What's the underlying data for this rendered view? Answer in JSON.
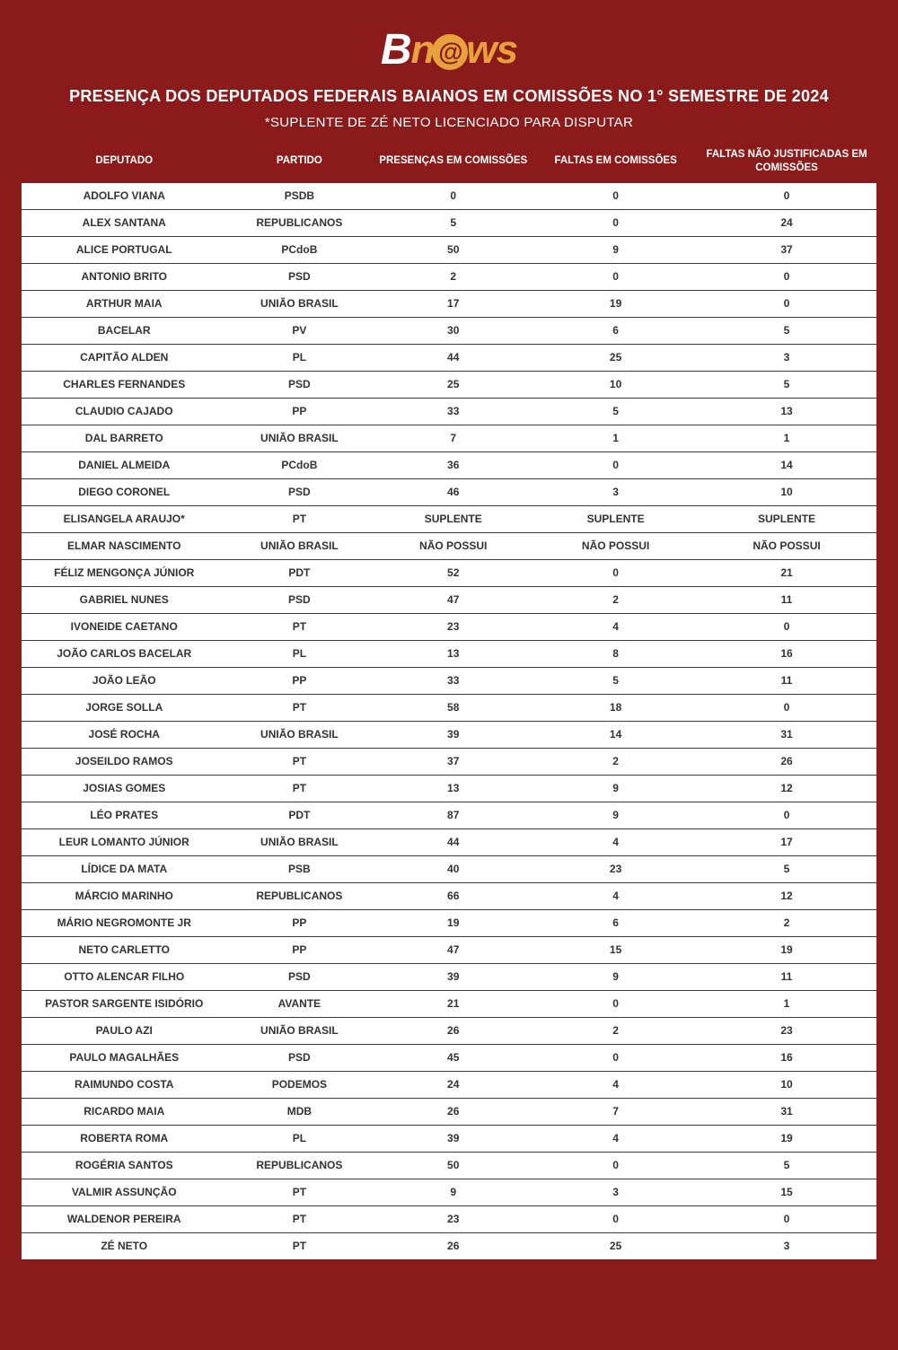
{
  "logo": {
    "b": "B",
    "n": "n",
    "e": "e",
    "ws": "ws"
  },
  "title": "PRESENÇA DOS DEPUTADOS FEDERAIS BAIANOS EM COMISSÕES NO 1° SEMESTRE DE 2024",
  "subtitle": "*SUPLENTE DE ZÉ NETO LICENCIADO PARA DISPUTAR",
  "colors": {
    "background": "#8B1A1A",
    "accent": "#E8A23D",
    "cell_bg": "#ffffff",
    "cell_text": "#333333",
    "border": "#8B1A1A"
  },
  "table": {
    "columns": [
      "DEPUTADO",
      "PARTIDO",
      "PRESENÇAS EM COMISSÕES",
      "FALTAS EM COMISSÕES",
      "FALTAS NÃO JUSTIFICADAS EM COMISSÕES"
    ],
    "rows": [
      [
        "ADOLFO VIANA",
        "PSDB",
        "0",
        "0",
        "0"
      ],
      [
        "ALEX SANTANA",
        "REPUBLICANOS",
        "5",
        "0",
        "24"
      ],
      [
        "ALICE PORTUGAL",
        "PCdoB",
        "50",
        "9",
        "37"
      ],
      [
        "ANTONIO BRITO",
        "PSD",
        "2",
        "0",
        "0"
      ],
      [
        "ARTHUR MAIA",
        "UNIÃO BRASIL",
        "17",
        "19",
        "0"
      ],
      [
        "BACELAR",
        "PV",
        "30",
        "6",
        "5"
      ],
      [
        "CAPITÃO ALDEN",
        "PL",
        "44",
        "25",
        "3"
      ],
      [
        "CHARLES FERNANDES",
        "PSD",
        "25",
        "10",
        "5"
      ],
      [
        "CLAUDIO CAJADO",
        "PP",
        "33",
        "5",
        "13"
      ],
      [
        "DAL BARRETO",
        "UNIÃO BRASIL",
        "7",
        "1",
        "1"
      ],
      [
        "DANIEL ALMEIDA",
        "PCdoB",
        "36",
        "0",
        "14"
      ],
      [
        "DIEGO CORONEL",
        "PSD",
        "46",
        "3",
        "10"
      ],
      [
        "ELISANGELA ARAUJO*",
        "PT",
        "SUPLENTE",
        "SUPLENTE",
        "SUPLENTE"
      ],
      [
        "ELMAR NASCIMENTO",
        "UNIÃO BRASIL",
        "NÃO POSSUI",
        "NÃO POSSUI",
        "NÃO POSSUI"
      ],
      [
        "FÉLIZ MENGONÇA JÚNIOR",
        "PDT",
        "52",
        "0",
        "21"
      ],
      [
        "GABRIEL NUNES",
        "PSD",
        "47",
        "2",
        "11"
      ],
      [
        "IVONEIDE CAETANO",
        "PT",
        "23",
        "4",
        "0"
      ],
      [
        "JOÃO CARLOS BACELAR",
        "PL",
        "13",
        "8",
        "16"
      ],
      [
        "JOÃO LEÃO",
        "PP",
        "33",
        "5",
        "11"
      ],
      [
        "JORGE SOLLA",
        "PT",
        "58",
        "18",
        "0"
      ],
      [
        "JOSÉ ROCHA",
        "UNIÃO BRASIL",
        "39",
        "14",
        "31"
      ],
      [
        "JOSEILDO RAMOS",
        "PT",
        "37",
        "2",
        "26"
      ],
      [
        "JOSIAS GOMES",
        "PT",
        "13",
        "9",
        "12"
      ],
      [
        "LÉO PRATES",
        "PDT",
        "87",
        "9",
        "0"
      ],
      [
        "LEUR LOMANTO JÚNIOR",
        "UNIÃO BRASIL",
        "44",
        "4",
        "17"
      ],
      [
        "LÍDICE DA MATA",
        "PSB",
        "40",
        "23",
        "5"
      ],
      [
        "MÁRCIO MARINHO",
        "REPUBLICANOS",
        "66",
        "4",
        "12"
      ],
      [
        "MÁRIO NEGROMONTE JR",
        "PP",
        "19",
        "6",
        "2"
      ],
      [
        "NETO CARLETTO",
        "PP",
        "47",
        "15",
        "19"
      ],
      [
        "OTTO ALENCAR FILHO",
        "PSD",
        "39",
        "9",
        "11"
      ],
      [
        "PASTOR SARGENTE ISIDÓRIO",
        "AVANTE",
        "21",
        "0",
        "1"
      ],
      [
        "PAULO AZI",
        "UNIÃO BRASIL",
        "26",
        "2",
        "23"
      ],
      [
        "PAULO MAGALHÃES",
        "PSD",
        "45",
        "0",
        "16"
      ],
      [
        "RAIMUNDO COSTA",
        "PODEMOS",
        "24",
        "4",
        "10"
      ],
      [
        "RICARDO MAIA",
        "MDB",
        "26",
        "7",
        "31"
      ],
      [
        "ROBERTA ROMA",
        "PL",
        "39",
        "4",
        "19"
      ],
      [
        "ROGÉRIA SANTOS",
        "REPUBLICANOS",
        "50",
        "0",
        "5"
      ],
      [
        "VALMIR ASSUNÇÃO",
        "PT",
        "9",
        "3",
        "15"
      ],
      [
        "WALDENOR PEREIRA",
        "PT",
        "23",
        "0",
        "0"
      ],
      [
        "ZÉ NETO",
        "PT",
        "26",
        "25",
        "3"
      ]
    ]
  }
}
